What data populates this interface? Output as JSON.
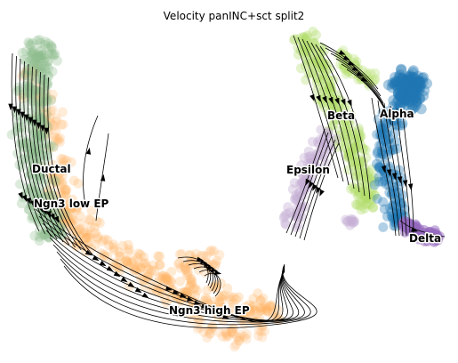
{
  "chart_data": {
    "type": "scatter",
    "title": "Velocity panINC+sct split2",
    "xlabel": "",
    "ylabel": "",
    "axes_visible": false,
    "grid": false,
    "overlay": "velocity-streamlines",
    "clusters": [
      {
        "name": "Ductal",
        "color": "#8fbc8f"
      },
      {
        "name": "Ngn3 low EP",
        "color": "#8fbc8f"
      },
      {
        "name": "Ngn3 high EP",
        "color": "#ffb366"
      },
      {
        "name": "Beta",
        "color": "#b3de69"
      },
      {
        "name": "Alpha",
        "color": "#1f77b4"
      },
      {
        "name": "Epsilon",
        "color": "#c5b0d5"
      },
      {
        "name": "Delta",
        "color": "#9467bd"
      }
    ]
  }
}
